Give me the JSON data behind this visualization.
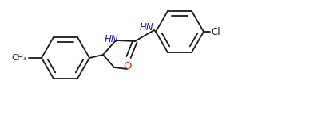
{
  "bg_color": "#ffffff",
  "line_color": "#1a1a1a",
  "text_color": "#1a1a1a",
  "nh_color": "#1a1aaa",
  "o_color": "#cc3300",
  "cl_color": "#1a1a1a",
  "line_width": 1.3,
  "font_size": 8.5,
  "figsize": [
    4.12,
    1.45
  ],
  "dpi": 100,
  "xlim": [
    0,
    412
  ],
  "ylim": [
    0,
    145
  ]
}
